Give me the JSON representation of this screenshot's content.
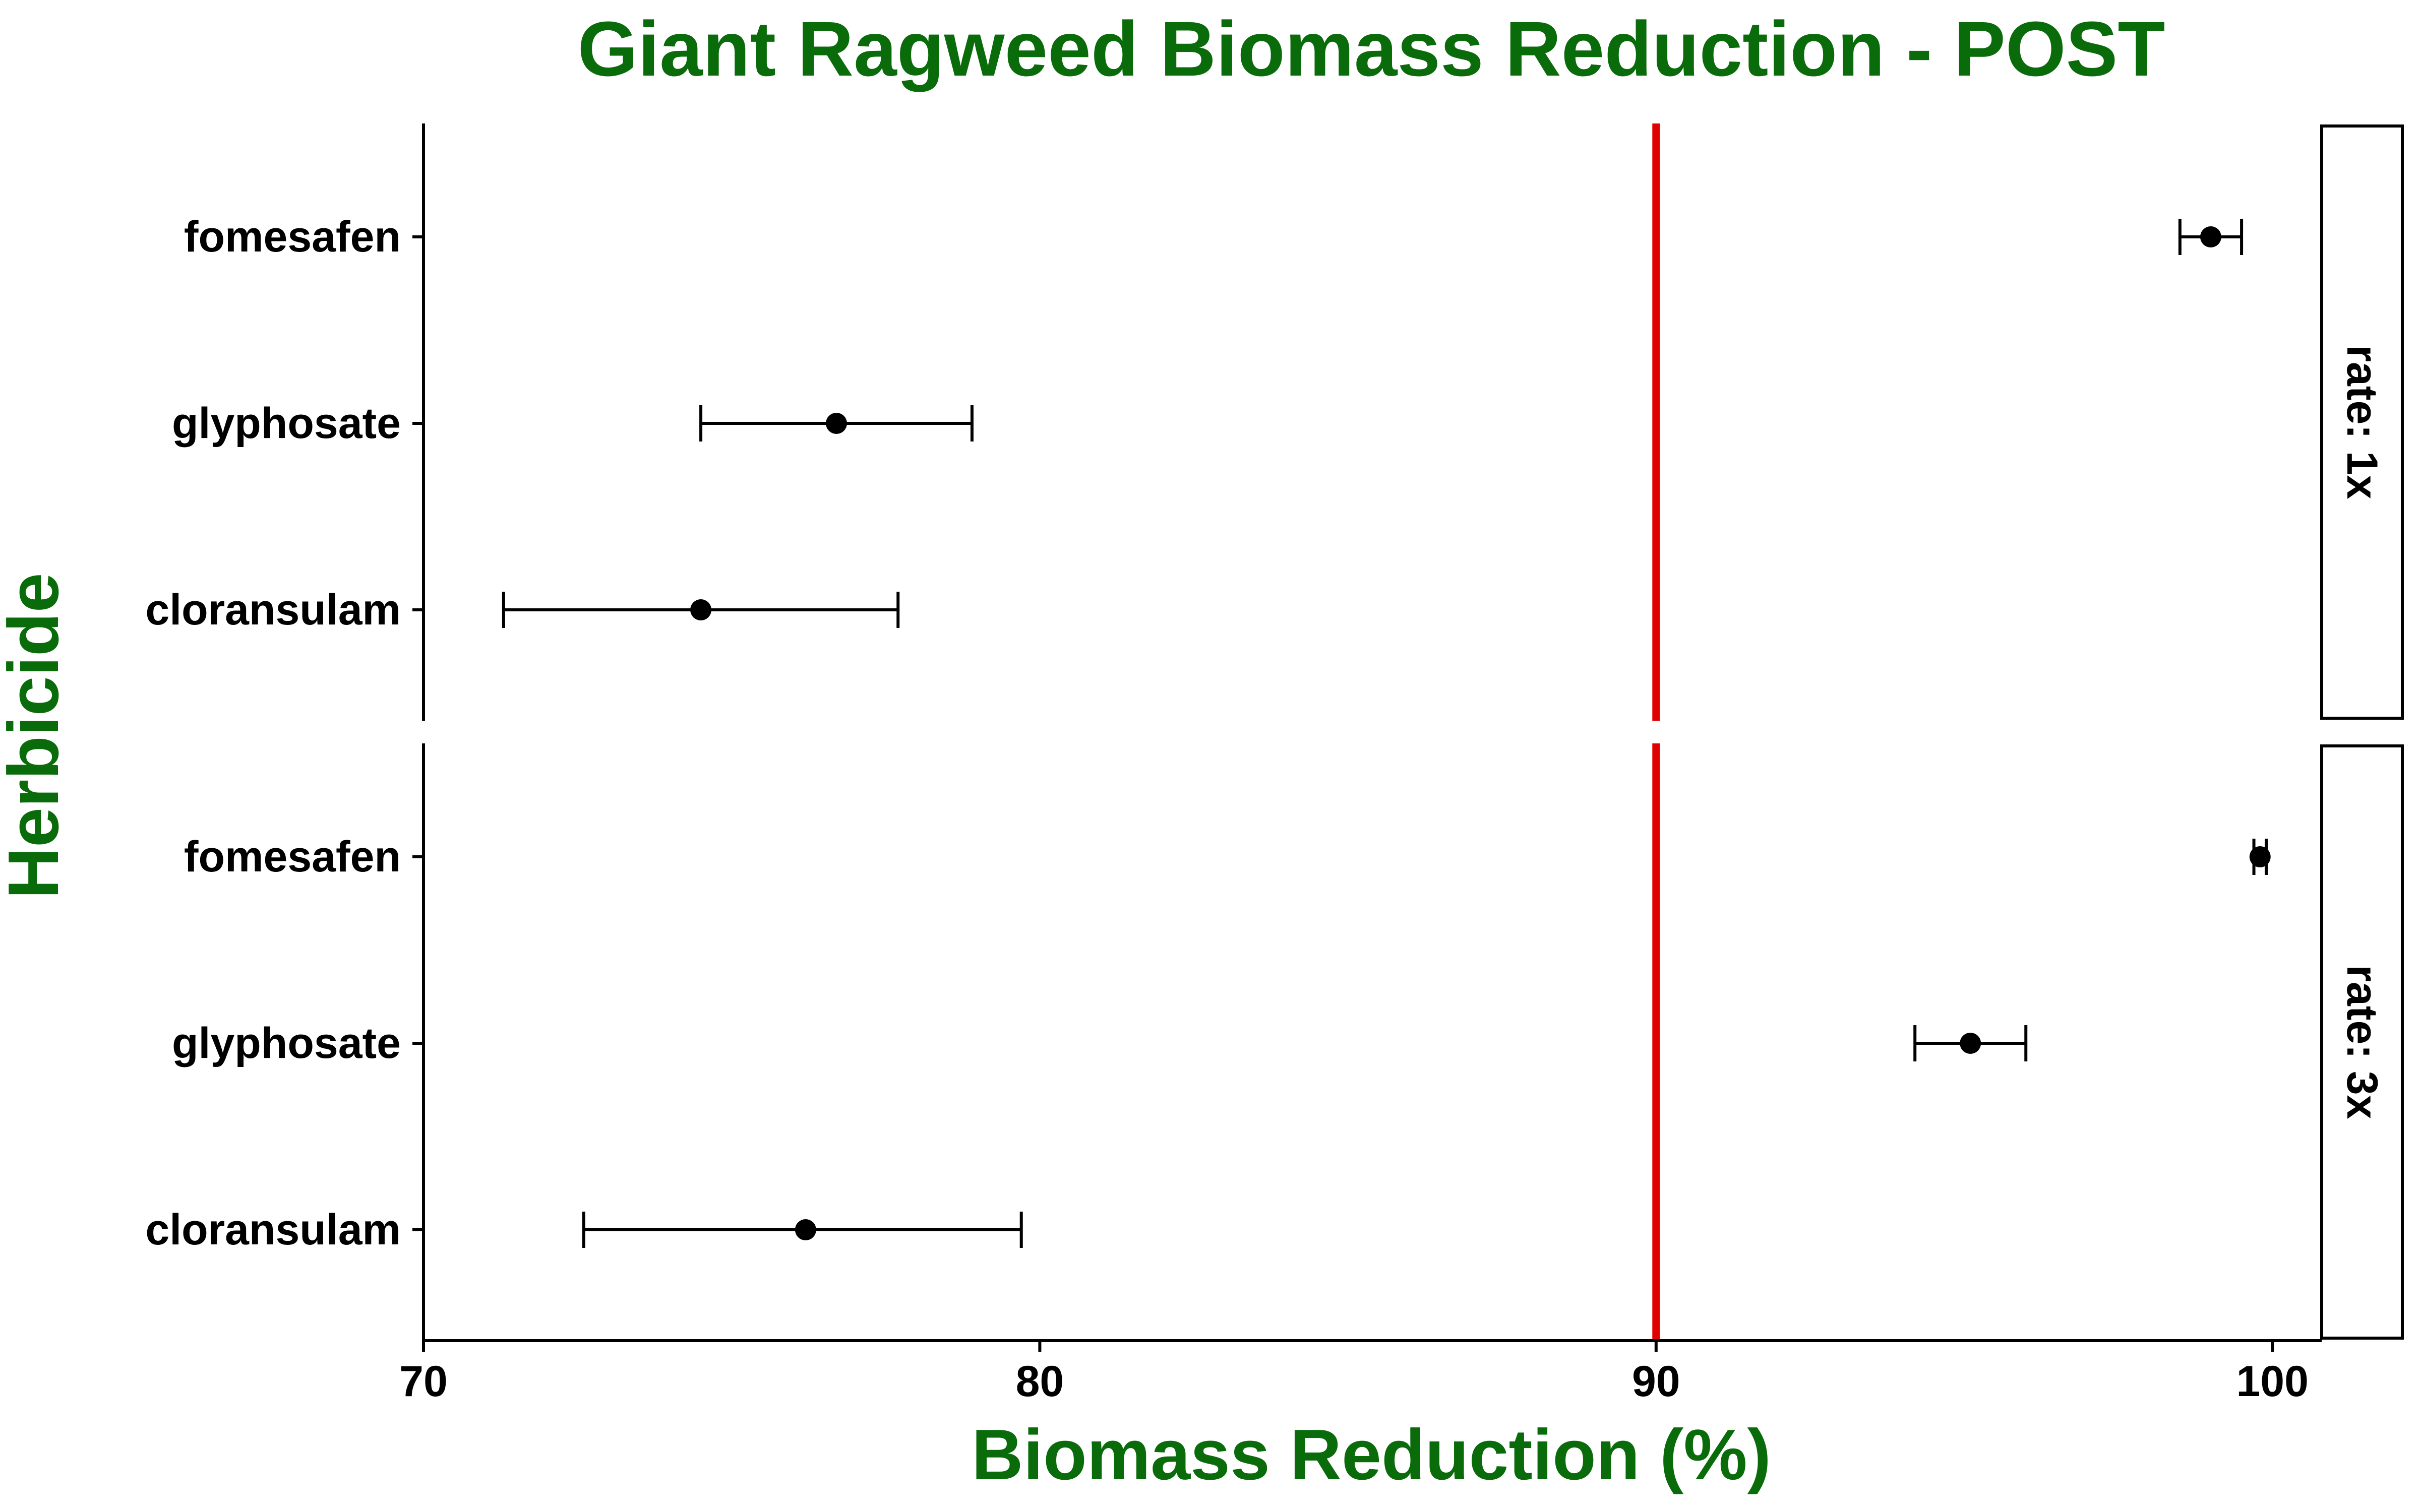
{
  "chart_data": {
    "type": "scatter",
    "title": "Giant Ragweed Biomass Reduction - POST",
    "xlabel": "Biomass Reduction (%)",
    "ylabel": "Herbicide",
    "xlim": [
      70,
      100.8
    ],
    "xticks": [
      70,
      80,
      90,
      100
    ],
    "reference_line": {
      "x": 90,
      "color": "#e00000"
    },
    "categories": [
      "fomesafen",
      "glyphosate",
      "cloransulam"
    ],
    "panels": [
      {
        "label": "rate: 1x",
        "points": [
          {
            "herbicide": "fomesafen",
            "value": 99.0,
            "lower": 98.5,
            "upper": 99.5
          },
          {
            "herbicide": "glyphosate",
            "value": 76.7,
            "lower": 74.5,
            "upper": 78.9
          },
          {
            "herbicide": "cloransulam",
            "value": 74.5,
            "lower": 71.3,
            "upper": 77.7
          }
        ]
      },
      {
        "label": "rate: 3x",
        "points": [
          {
            "herbicide": "fomesafen",
            "value": 99.8,
            "lower": 99.7,
            "upper": 99.9
          },
          {
            "herbicide": "glyphosate",
            "value": 95.1,
            "lower": 94.2,
            "upper": 96.0
          },
          {
            "herbicide": "cloransulam",
            "value": 76.2,
            "lower": 72.6,
            "upper": 79.7
          }
        ]
      }
    ],
    "grid": false,
    "colors": {
      "title": "#0a6b0a",
      "points": "#000000",
      "reference": "#e00000"
    }
  }
}
